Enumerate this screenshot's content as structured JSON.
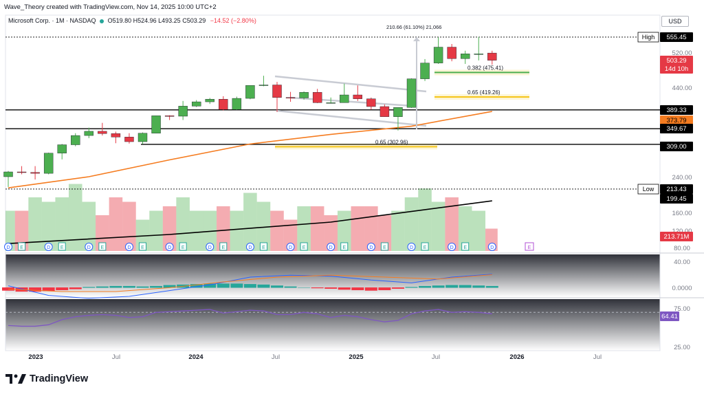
{
  "header_text": "Wave_Theory created with TradingView.com, Nov 14, 2025 10:00 UTC+2",
  "legend": {
    "symbol": "Microsoft Corp. · 1M · NASDAQ",
    "open": "O519.80",
    "high": "H524.96",
    "low": "L493.25",
    "close": "C503.29",
    "change": "−14.52 (−2.80%)"
  },
  "currency_button": "USD",
  "brand": "TradingView",
  "colors": {
    "up": "#26a69a",
    "candle_up": "#4caf50",
    "candle_down": "#e53945",
    "ema": "#f57c20",
    "long_ma": "#000000",
    "fib_green": "#4caf50",
    "fib_gold": "#f5c518",
    "macd_line": "#2962ff",
    "signal_line": "#f57c20",
    "rsi_line": "#7e57c2",
    "price_tag_red": "#e53945",
    "event_blue": "#2962ff",
    "dividend_purple": "#b04fd6"
  },
  "chart_data": {
    "type": "candlestick",
    "symbol": "Microsoft Corp.",
    "interval": "1M",
    "exchange": "NASDAQ",
    "y_axis": {
      "ticks": [
        "520.00",
        "440.00",
        "240.00",
        "160.00",
        "120.00",
        "80.00"
      ],
      "ylim": [
        80,
        570
      ]
    },
    "x_axis": {
      "labels": [
        "2023",
        "Jul",
        "2024",
        "Jul",
        "2025",
        "Jul",
        "2026",
        "Jul"
      ]
    },
    "candles": [
      {
        "t": 0,
        "o": 240,
        "h": 252,
        "l": 218,
        "c": 250
      },
      {
        "t": 1,
        "o": 250,
        "h": 262,
        "l": 245,
        "c": 249
      },
      {
        "t": 2,
        "o": 249,
        "h": 262,
        "l": 234,
        "c": 247
      },
      {
        "t": 3,
        "o": 247,
        "h": 290,
        "l": 245,
        "c": 289
      },
      {
        "t": 4,
        "o": 289,
        "h": 310,
        "l": 276,
        "c": 308
      },
      {
        "t": 5,
        "o": 308,
        "h": 338,
        "l": 304,
        "c": 332
      },
      {
        "t": 6,
        "o": 332,
        "h": 352,
        "l": 325,
        "c": 343
      },
      {
        "t": 7,
        "o": 343,
        "h": 362,
        "l": 332,
        "c": 337
      },
      {
        "t": 8,
        "o": 337,
        "h": 342,
        "l": 312,
        "c": 328
      },
      {
        "t": 9,
        "o": 328,
        "h": 338,
        "l": 311,
        "c": 316
      },
      {
        "t": 10,
        "o": 316,
        "h": 340,
        "l": 310,
        "c": 338
      },
      {
        "t": 11,
        "o": 338,
        "h": 377,
        "l": 338,
        "c": 377
      },
      {
        "t": 12,
        "o": 377,
        "h": 378,
        "l": 368,
        "c": 376
      },
      {
        "t": 13,
        "o": 376,
        "h": 410,
        "l": 368,
        "c": 398
      },
      {
        "t": 14,
        "o": 398,
        "h": 412,
        "l": 396,
        "c": 408
      },
      {
        "t": 15,
        "o": 408,
        "h": 417,
        "l": 403,
        "c": 414
      },
      {
        "t": 16,
        "o": 414,
        "h": 421,
        "l": 388,
        "c": 390
      },
      {
        "t": 17,
        "o": 390,
        "h": 420,
        "l": 389,
        "c": 416
      },
      {
        "t": 18,
        "o": 416,
        "h": 444,
        "l": 414,
        "c": 446
      },
      {
        "t": 19,
        "o": 446,
        "h": 468,
        "l": 444,
        "c": 447
      },
      {
        "t": 20,
        "o": 447,
        "h": 454,
        "l": 385,
        "c": 418
      },
      {
        "t": 21,
        "o": 418,
        "h": 431,
        "l": 408,
        "c": 417
      },
      {
        "t": 22,
        "o": 417,
        "h": 432,
        "l": 413,
        "c": 430
      },
      {
        "t": 23,
        "o": 430,
        "h": 438,
        "l": 405,
        "c": 406
      },
      {
        "t": 24,
        "o": 406,
        "h": 418,
        "l": 404,
        "c": 406
      },
      {
        "t": 25,
        "o": 406,
        "h": 450,
        "l": 406,
        "c": 424
      },
      {
        "t": 26,
        "o": 424,
        "h": 446,
        "l": 410,
        "c": 415
      },
      {
        "t": 27,
        "o": 415,
        "h": 418,
        "l": 390,
        "c": 397
      },
      {
        "t": 28,
        "o": 397,
        "h": 402,
        "l": 375,
        "c": 375
      },
      {
        "t": 29,
        "o": 375,
        "h": 392,
        "l": 345,
        "c": 395
      },
      {
        "t": 30,
        "o": 395,
        "h": 462,
        "l": 394,
        "c": 461
      },
      {
        "t": 31,
        "o": 461,
        "h": 506,
        "l": 456,
        "c": 497
      },
      {
        "t": 32,
        "o": 497,
        "h": 555,
        "l": 495,
        "c": 533
      },
      {
        "t": 33,
        "o": 533,
        "h": 540,
        "l": 501,
        "c": 507
      },
      {
        "t": 34,
        "o": 507,
        "h": 525,
        "l": 495,
        "c": 518
      },
      {
        "t": 35,
        "o": 518,
        "h": 556,
        "l": 503,
        "c": 518
      },
      {
        "t": 36,
        "o": 519.8,
        "h": 524.96,
        "l": 493.25,
        "c": 503.29
      }
    ],
    "price_labels": [
      {
        "label": "High",
        "value": "555.45"
      },
      {
        "label": "",
        "value": "503.29"
      },
      {
        "label": "",
        "value": "14d 10h"
      },
      {
        "label": "",
        "value": "389.33"
      },
      {
        "label": "",
        "value": "373.79"
      },
      {
        "label": "",
        "value": "349.67"
      },
      {
        "label": "",
        "value": "309.00"
      },
      {
        "label": "Low",
        "value": "213.43"
      },
      {
        "label": "",
        "value": "199.45"
      },
      {
        "label": "",
        "value": "213.71M"
      }
    ],
    "horizontal_levels": [
      389.33,
      349.67,
      309.0,
      213.43,
      555.45
    ],
    "fib_levels": [
      {
        "label": "0.382 (475.41)",
        "value": 475.41,
        "color": "#4caf50"
      },
      {
        "label": "0.65 (419.26)",
        "value": 419.26,
        "color": "#f5c518"
      },
      {
        "label": "0.65 (302.96)",
        "value": 302.96,
        "color": "#f5c518"
      }
    ],
    "measure_label": "210.66 (61.10%) 21,066",
    "ema": [
      [
        0,
        216
      ],
      [
        6,
        240
      ],
      [
        12,
        275
      ],
      [
        18,
        310
      ],
      [
        24,
        335
      ],
      [
        30,
        355
      ],
      [
        36,
        386
      ]
    ],
    "long_ma": [
      [
        0,
        88
      ],
      [
        12,
        110
      ],
      [
        24,
        140
      ],
      [
        36,
        188
      ]
    ],
    "volume": [
      0.45,
      0.45,
      0.6,
      0.55,
      0.6,
      0.75,
      0.55,
      0.4,
      0.6,
      0.55,
      0.35,
      0.45,
      0.5,
      0.6,
      0.45,
      0.45,
      0.5,
      0.45,
      0.65,
      0.55,
      0.45,
      0.35,
      0.5,
      0.5,
      0.4,
      0.45,
      0.5,
      0.5,
      0.4,
      0.45,
      0.6,
      0.7,
      0.55,
      0.6,
      0.5,
      0.45,
      0.25
    ],
    "volume_up": [
      1,
      0,
      1,
      1,
      1,
      1,
      1,
      0,
      0,
      0,
      1,
      1,
      0,
      1,
      1,
      1,
      0,
      1,
      1,
      1,
      0,
      0,
      1,
      0,
      0,
      1,
      0,
      0,
      0,
      1,
      1,
      1,
      1,
      0,
      1,
      1,
      0
    ],
    "macd": {
      "ticks": [
        "40.00",
        "0.0000"
      ],
      "macd_line": [
        [
          0,
          32
        ],
        [
          3,
          12
        ],
        [
          6,
          6
        ],
        [
          9,
          10
        ],
        [
          12,
          22
        ],
        [
          15,
          34
        ],
        [
          18,
          50
        ],
        [
          21,
          54
        ],
        [
          24,
          52
        ],
        [
          27,
          44
        ],
        [
          30,
          38
        ],
        [
          33,
          50
        ],
        [
          36,
          56
        ]
      ],
      "signal_line": [
        [
          0,
          25
        ],
        [
          4,
          20
        ],
        [
          8,
          20
        ],
        [
          12,
          28
        ],
        [
          16,
          40
        ],
        [
          20,
          50
        ],
        [
          24,
          54
        ],
        [
          28,
          50
        ],
        [
          32,
          46
        ],
        [
          36,
          55
        ]
      ],
      "histogram": [
        -6,
        -8,
        -8,
        -7,
        -5,
        -3,
        1,
        2,
        3,
        3,
        2,
        3,
        5,
        6,
        7,
        8,
        8,
        8,
        7,
        6,
        4,
        2,
        0,
        -1,
        -2,
        -4,
        -5,
        -6,
        -5,
        -2,
        1,
        3,
        4,
        5,
        5,
        4,
        3
      ]
    },
    "rsi": {
      "ticks": [
        "75.00",
        "25.00"
      ],
      "value": "64.41",
      "levels": [
        70,
        30
      ],
      "line": [
        [
          0,
          52
        ],
        [
          1,
          51
        ],
        [
          2,
          51
        ],
        [
          3,
          53
        ],
        [
          4,
          60
        ],
        [
          5,
          64
        ],
        [
          6,
          66
        ],
        [
          7,
          67
        ],
        [
          8,
          66
        ],
        [
          9,
          63
        ],
        [
          10,
          64
        ],
        [
          11,
          70
        ],
        [
          12,
          71
        ],
        [
          13,
          72
        ],
        [
          14,
          73
        ],
        [
          15,
          74
        ],
        [
          16,
          69
        ],
        [
          17,
          71
        ],
        [
          18,
          73
        ],
        [
          19,
          72
        ],
        [
          20,
          67
        ],
        [
          21,
          67
        ],
        [
          22,
          70
        ],
        [
          23,
          68
        ],
        [
          24,
          63
        ],
        [
          25,
          66
        ],
        [
          26,
          64
        ],
        [
          27,
          60
        ],
        [
          28,
          57
        ],
        [
          29,
          59
        ],
        [
          30,
          68
        ],
        [
          31,
          72
        ],
        [
          32,
          74
        ],
        [
          33,
          70
        ],
        [
          34,
          71
        ],
        [
          35,
          70
        ],
        [
          36,
          68
        ]
      ]
    }
  }
}
